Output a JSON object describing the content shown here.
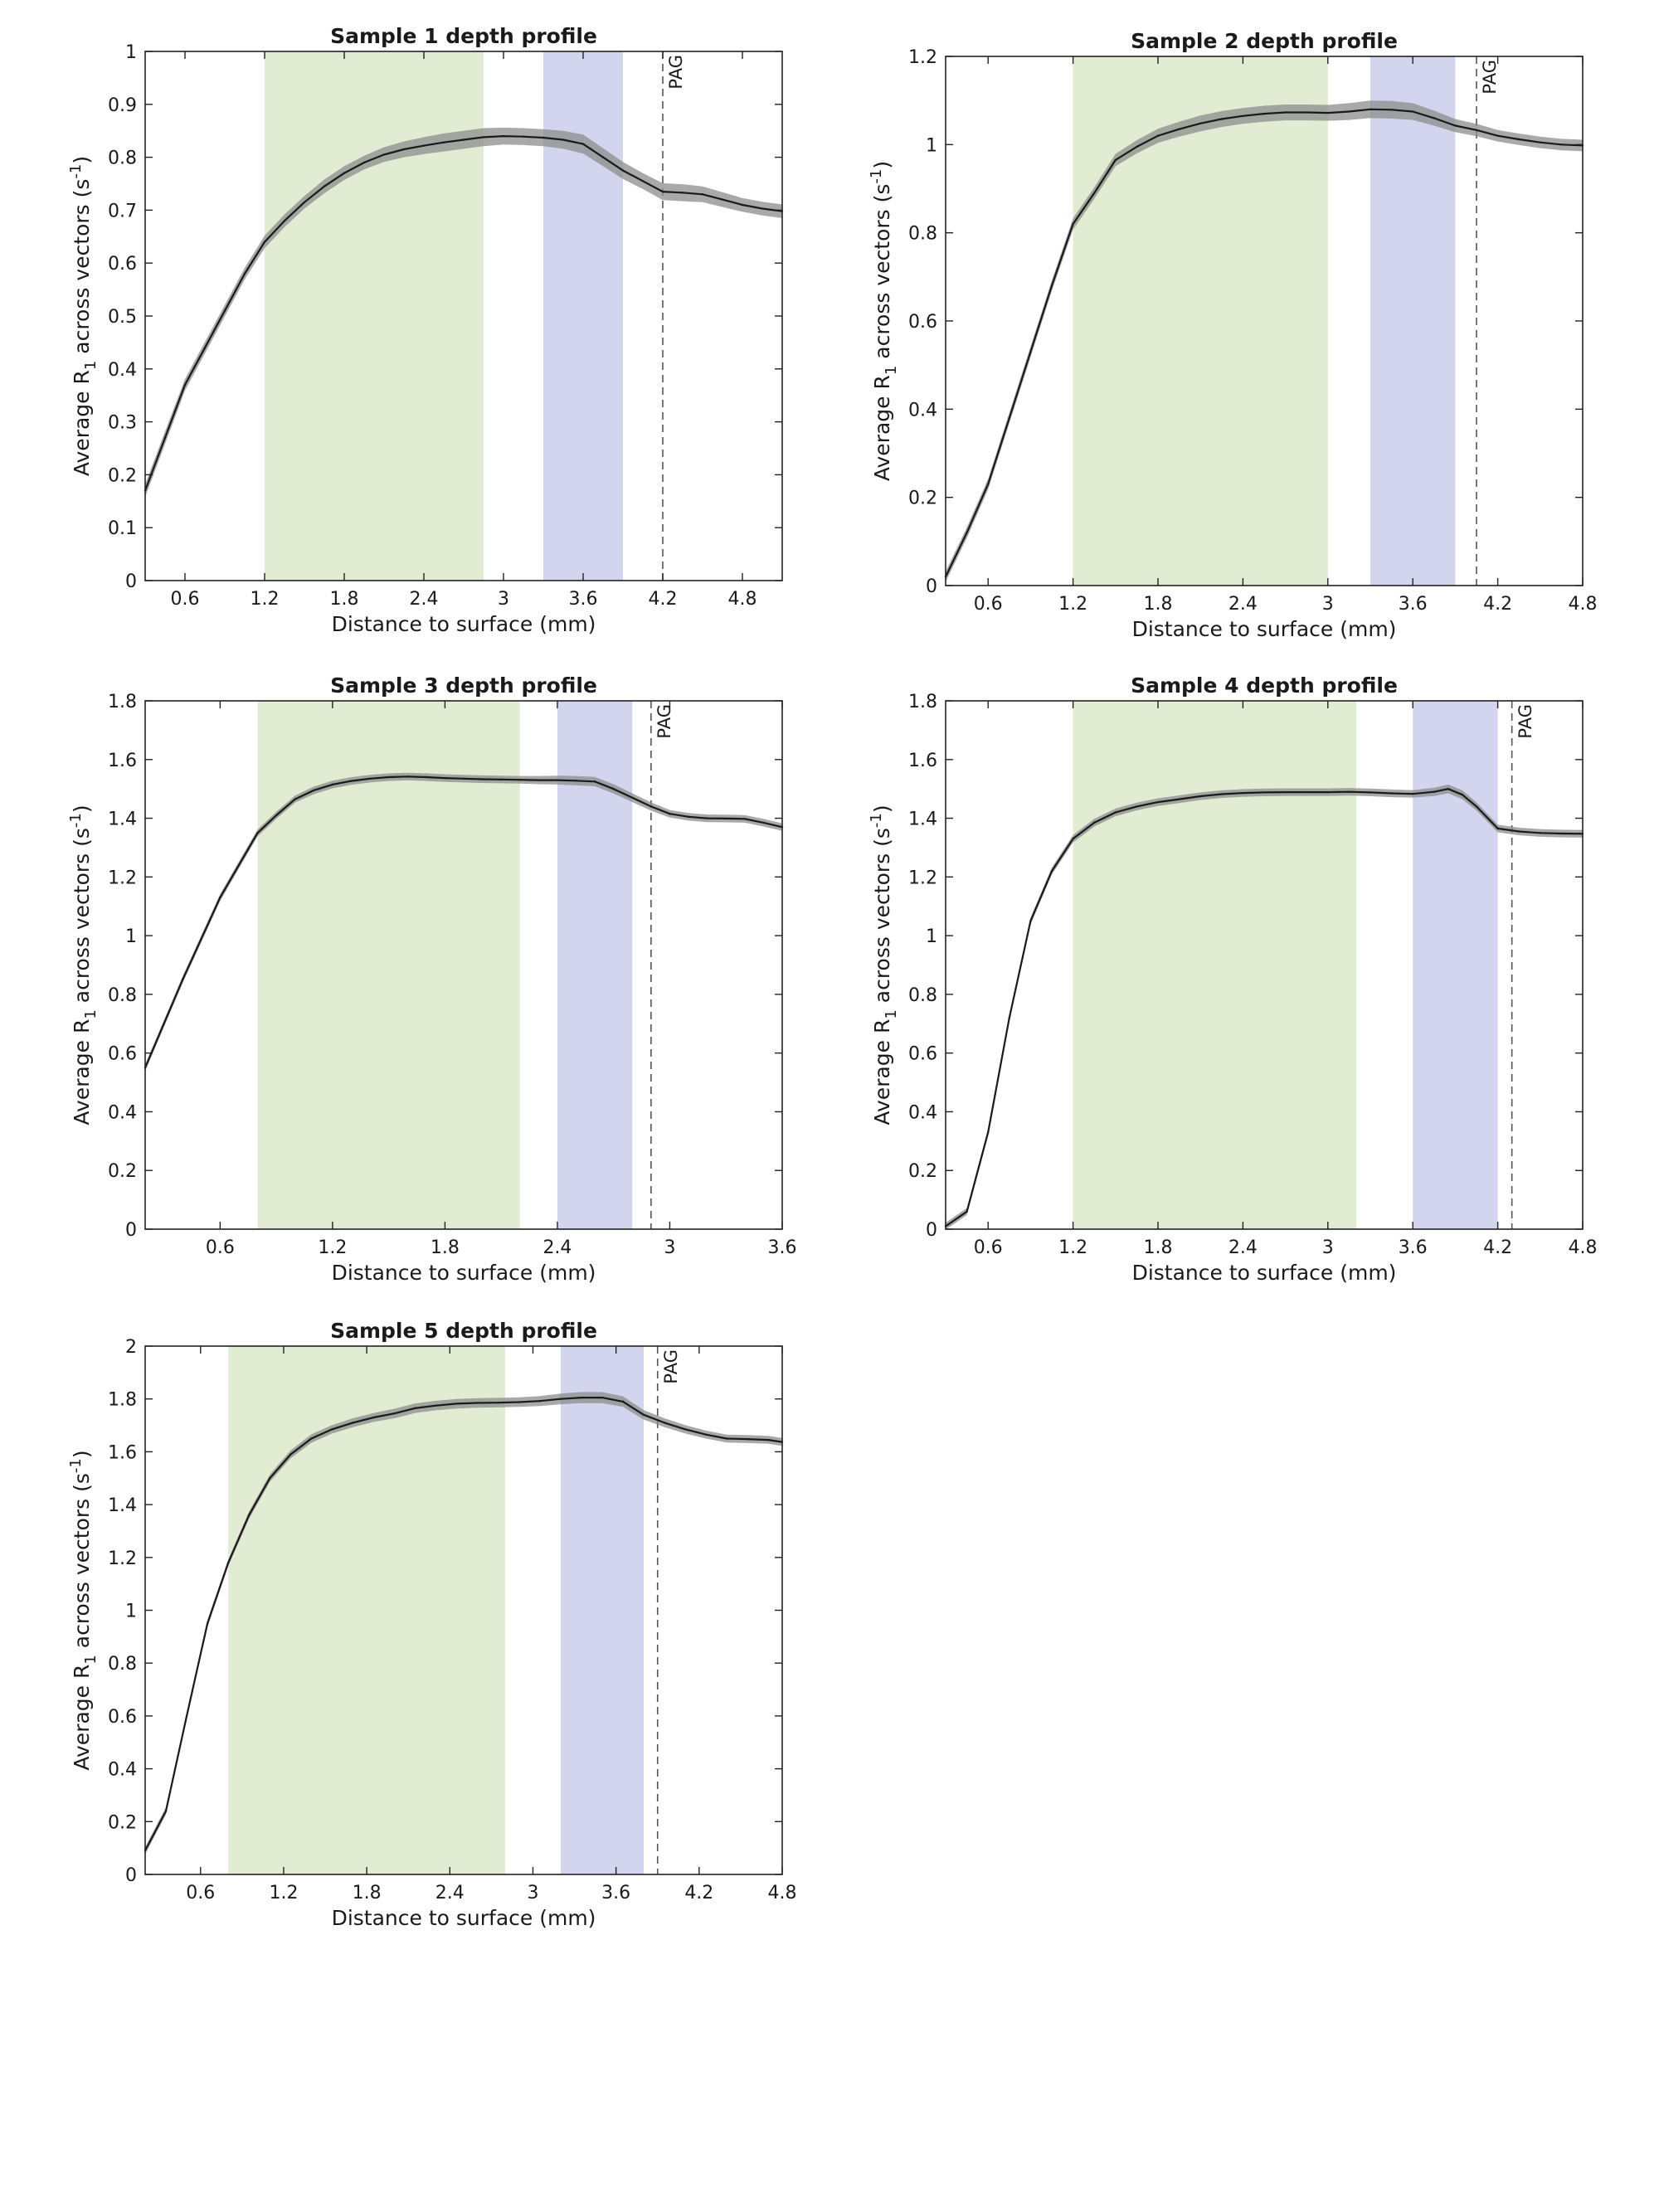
{
  "figure": {
    "ylabel_main": "Average R",
    "ylabel_sub": "1",
    "ylabel_mid": " across vectors (s",
    "ylabel_sup": "-1",
    "ylabel_end": ")",
    "marker_label": "PAG"
  },
  "colors": {
    "green_band": "#e1ecd3",
    "blue_band": "#d3d5ee",
    "line": "#1a1a1a",
    "ribbon": "#8c8c8c",
    "axis": "#222222"
  },
  "chart_data": [
    {
      "type": "line",
      "title": "Sample 1 depth profile",
      "xlabel": "Distance to surface (mm)",
      "ylabel": "Average R1 across vectors (s-1)",
      "xlim": [
        0.3,
        5.1
      ],
      "ylim": [
        0,
        1
      ],
      "xticks": [
        0.6,
        1.2,
        1.8,
        2.4,
        3,
        3.6,
        4.2,
        4.8
      ],
      "yticks": [
        0,
        0.1,
        0.2,
        0.3,
        0.4,
        0.5,
        0.6,
        0.7,
        0.8,
        0.9,
        1
      ],
      "green_band": [
        1.2,
        2.85
      ],
      "blue_band": [
        3.3,
        3.9
      ],
      "pag": 4.2,
      "x": [
        0.3,
        0.45,
        0.6,
        0.75,
        0.9,
        1.05,
        1.2,
        1.35,
        1.5,
        1.65,
        1.8,
        1.95,
        2.1,
        2.25,
        2.4,
        2.55,
        2.7,
        2.85,
        3.0,
        3.15,
        3.3,
        3.45,
        3.6,
        3.75,
        3.9,
        4.05,
        4.2,
        4.35,
        4.5,
        4.65,
        4.8,
        4.95,
        5.1
      ],
      "y": [
        0.17,
        0.27,
        0.37,
        0.44,
        0.51,
        0.58,
        0.64,
        0.68,
        0.715,
        0.745,
        0.77,
        0.79,
        0.805,
        0.815,
        0.822,
        0.828,
        0.833,
        0.838,
        0.84,
        0.839,
        0.837,
        0.833,
        0.825,
        0.8,
        0.775,
        0.755,
        0.735,
        0.733,
        0.73,
        0.72,
        0.71,
        0.703,
        0.698
      ],
      "band_width": [
        0.012,
        0.012,
        0.011,
        0.011,
        0.011,
        0.011,
        0.012,
        0.012,
        0.012,
        0.013,
        0.013,
        0.013,
        0.014,
        0.015,
        0.016,
        0.017,
        0.017,
        0.017,
        0.016,
        0.016,
        0.016,
        0.017,
        0.018,
        0.017,
        0.016,
        0.015,
        0.016,
        0.016,
        0.015,
        0.014,
        0.013,
        0.013,
        0.013
      ]
    },
    {
      "type": "line",
      "title": "Sample 2 depth profile",
      "xlabel": "Distance to surface (mm)",
      "ylabel": "Average R1 across vectors (s-1)",
      "xlim": [
        0.3,
        4.8
      ],
      "ylim": [
        0,
        1.2
      ],
      "xticks": [
        0.6,
        1.2,
        1.8,
        2.4,
        3,
        3.6,
        4.2,
        4.8
      ],
      "yticks": [
        0,
        0.2,
        0.4,
        0.6,
        0.8,
        1,
        1.2
      ],
      "green_band": [
        1.2,
        3.0
      ],
      "blue_band": [
        3.3,
        3.9
      ],
      "pag": 4.05,
      "x": [
        0.3,
        0.45,
        0.6,
        0.75,
        0.9,
        1.05,
        1.2,
        1.35,
        1.5,
        1.65,
        1.8,
        1.95,
        2.1,
        2.25,
        2.4,
        2.55,
        2.7,
        2.85,
        3.0,
        3.15,
        3.3,
        3.45,
        3.6,
        3.75,
        3.9,
        4.05,
        4.2,
        4.35,
        4.5,
        4.65,
        4.8
      ],
      "y": [
        0.02,
        0.12,
        0.23,
        0.38,
        0.53,
        0.68,
        0.82,
        0.89,
        0.965,
        0.995,
        1.02,
        1.035,
        1.048,
        1.058,
        1.065,
        1.07,
        1.073,
        1.073,
        1.072,
        1.075,
        1.08,
        1.079,
        1.075,
        1.06,
        1.043,
        1.033,
        1.02,
        1.012,
        1.005,
        1.0,
        0.998
      ],
      "band_width": [
        0.012,
        0.012,
        0.012,
        0.012,
        0.012,
        0.012,
        0.013,
        0.013,
        0.014,
        0.015,
        0.016,
        0.017,
        0.018,
        0.018,
        0.018,
        0.018,
        0.018,
        0.018,
        0.018,
        0.019,
        0.02,
        0.02,
        0.019,
        0.017,
        0.015,
        0.014,
        0.013,
        0.013,
        0.013,
        0.013,
        0.013
      ]
    },
    {
      "type": "line",
      "title": "Sample 3 depth profile",
      "xlabel": "Distance to surface (mm)",
      "ylabel": "Average R1 across vectors (s-1)",
      "xlim": [
        0.2,
        3.6
      ],
      "ylim": [
        0,
        1.8
      ],
      "xticks": [
        0.6,
        1.2,
        1.8,
        2.4,
        3,
        3.6
      ],
      "yticks": [
        0,
        0.2,
        0.4,
        0.6,
        0.8,
        1,
        1.2,
        1.4,
        1.6,
        1.8
      ],
      "green_band": [
        0.8,
        2.2
      ],
      "blue_band": [
        2.4,
        2.8
      ],
      "pag": 2.9,
      "x": [
        0.2,
        0.3,
        0.4,
        0.5,
        0.6,
        0.7,
        0.8,
        0.9,
        1.0,
        1.1,
        1.2,
        1.3,
        1.4,
        1.5,
        1.6,
        1.7,
        1.8,
        1.9,
        2.0,
        2.1,
        2.2,
        2.3,
        2.4,
        2.5,
        2.6,
        2.7,
        2.8,
        2.9,
        3.0,
        3.1,
        3.2,
        3.3,
        3.4,
        3.5,
        3.6
      ],
      "y": [
        0.55,
        0.7,
        0.85,
        0.99,
        1.13,
        1.24,
        1.35,
        1.41,
        1.465,
        1.495,
        1.515,
        1.527,
        1.535,
        1.54,
        1.542,
        1.54,
        1.537,
        1.535,
        1.533,
        1.532,
        1.531,
        1.53,
        1.53,
        1.528,
        1.525,
        1.5,
        1.47,
        1.44,
        1.415,
        1.405,
        1.4,
        1.399,
        1.398,
        1.385,
        1.37
      ],
      "band_width": [
        0.012,
        0.012,
        0.012,
        0.012,
        0.012,
        0.012,
        0.012,
        0.012,
        0.012,
        0.013,
        0.013,
        0.013,
        0.013,
        0.013,
        0.013,
        0.013,
        0.013,
        0.013,
        0.013,
        0.013,
        0.013,
        0.014,
        0.015,
        0.016,
        0.016,
        0.016,
        0.015,
        0.014,
        0.013,
        0.013,
        0.013,
        0.013,
        0.013,
        0.013,
        0.013
      ]
    },
    {
      "type": "line",
      "title": "Sample 4 depth profile",
      "xlabel": "Distance to surface (mm)",
      "ylabel": "Average R1 across vectors (s-1)",
      "xlim": [
        0.3,
        4.8
      ],
      "ylim": [
        0,
        1.8
      ],
      "xticks": [
        0.6,
        1.2,
        1.8,
        2.4,
        3,
        3.6,
        4.2,
        4.8
      ],
      "yticks": [
        0,
        0.2,
        0.4,
        0.6,
        0.8,
        1,
        1.2,
        1.4,
        1.6,
        1.8
      ],
      "green_band": [
        1.2,
        3.2
      ],
      "blue_band": [
        3.6,
        4.2
      ],
      "pag": 4.3,
      "x": [
        0.3,
        0.45,
        0.6,
        0.75,
        0.9,
        1.05,
        1.2,
        1.35,
        1.5,
        1.65,
        1.8,
        1.95,
        2.1,
        2.25,
        2.4,
        2.55,
        2.7,
        2.85,
        3.0,
        3.15,
        3.3,
        3.45,
        3.6,
        3.75,
        3.85,
        3.95,
        4.05,
        4.15,
        4.2,
        4.35,
        4.5,
        4.65,
        4.8
      ],
      "y": [
        0.01,
        0.06,
        0.33,
        0.72,
        1.05,
        1.22,
        1.33,
        1.385,
        1.42,
        1.44,
        1.455,
        1.465,
        1.475,
        1.482,
        1.486,
        1.488,
        1.489,
        1.489,
        1.489,
        1.49,
        1.488,
        1.485,
        1.483,
        1.49,
        1.5,
        1.48,
        1.44,
        1.39,
        1.365,
        1.355,
        1.35,
        1.348,
        1.347
      ],
      "band_width": [
        0.012,
        0.012,
        0.012,
        0.012,
        0.012,
        0.012,
        0.013,
        0.013,
        0.013,
        0.013,
        0.013,
        0.013,
        0.013,
        0.013,
        0.013,
        0.013,
        0.013,
        0.013,
        0.013,
        0.013,
        0.013,
        0.013,
        0.013,
        0.014,
        0.015,
        0.015,
        0.014,
        0.013,
        0.013,
        0.013,
        0.013,
        0.013,
        0.013
      ]
    },
    {
      "type": "line",
      "title": "Sample 5 depth profile",
      "xlabel": "Distance to surface (mm)",
      "ylabel": "Average R1 across vectors (s-1)",
      "xlim": [
        0.2,
        4.8
      ],
      "ylim": [
        0,
        2
      ],
      "xticks": [
        0.6,
        1.2,
        1.8,
        2.4,
        3,
        3.6,
        4.2,
        4.8
      ],
      "yticks": [
        0,
        0.2,
        0.4,
        0.6,
        0.8,
        1,
        1.2,
        1.4,
        1.6,
        1.8,
        2
      ],
      "green_band": [
        0.8,
        2.8
      ],
      "blue_band": [
        3.2,
        3.8
      ],
      "pag": 3.9,
      "x": [
        0.2,
        0.35,
        0.5,
        0.65,
        0.8,
        0.95,
        1.1,
        1.25,
        1.4,
        1.55,
        1.7,
        1.85,
        2.0,
        2.15,
        2.3,
        2.45,
        2.6,
        2.75,
        2.9,
        3.05,
        3.2,
        3.35,
        3.5,
        3.65,
        3.8,
        3.95,
        4.1,
        4.25,
        4.4,
        4.55,
        4.7,
        4.8
      ],
      "y": [
        0.09,
        0.24,
        0.6,
        0.95,
        1.18,
        1.36,
        1.5,
        1.59,
        1.65,
        1.685,
        1.71,
        1.73,
        1.745,
        1.765,
        1.775,
        1.782,
        1.785,
        1.786,
        1.788,
        1.792,
        1.8,
        1.805,
        1.805,
        1.79,
        1.74,
        1.71,
        1.685,
        1.665,
        1.65,
        1.648,
        1.645,
        1.637
      ],
      "band_width": [
        0.014,
        0.014,
        0.013,
        0.013,
        0.013,
        0.014,
        0.014,
        0.015,
        0.016,
        0.016,
        0.017,
        0.017,
        0.018,
        0.018,
        0.018,
        0.018,
        0.018,
        0.018,
        0.018,
        0.019,
        0.02,
        0.021,
        0.021,
        0.02,
        0.018,
        0.017,
        0.016,
        0.015,
        0.015,
        0.015,
        0.015,
        0.015
      ]
    }
  ]
}
